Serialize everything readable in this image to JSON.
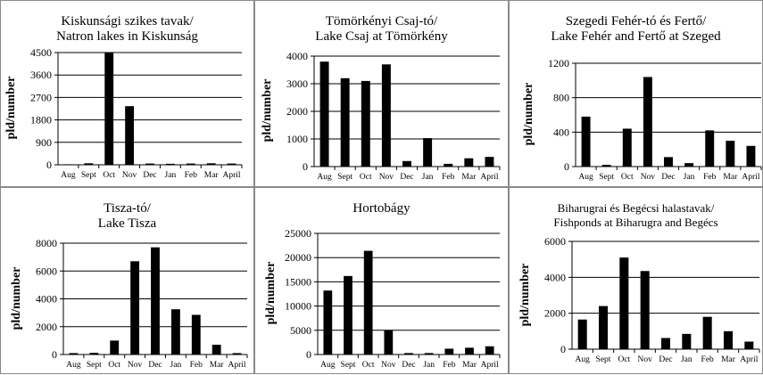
{
  "chart_data": [
    {
      "type": "bar",
      "title_line1": "Kiskunsági szikes tavak/",
      "title_line2": "Natron lakes in Kiskunság",
      "xlabel": "",
      "ylabel": "pld/number",
      "categories": [
        "Aug",
        "Sept",
        "Oct",
        "Nov",
        "Dec",
        "Jan",
        "Feb",
        "Mar",
        "April"
      ],
      "values": [
        20,
        60,
        4500,
        2350,
        50,
        40,
        50,
        60,
        50
      ],
      "yticks": [
        0,
        900,
        1800,
        2700,
        3600,
        4500
      ],
      "ylim": [
        0,
        4500
      ],
      "grid": true
    },
    {
      "type": "bar",
      "title_line1": "Tömörkényi Csaj-tó/",
      "title_line2": "Lake Csaj at Tömörkény",
      "xlabel": "",
      "ylabel": "pld/number",
      "categories": [
        "Aug",
        "Sept",
        "Oct",
        "Nov",
        "Dec",
        "Jan",
        "Feb",
        "Mar",
        "April"
      ],
      "values": [
        3800,
        3200,
        3100,
        3700,
        200,
        1030,
        100,
        300,
        350
      ],
      "yticks": [
        0,
        1000,
        2000,
        3000,
        4000
      ],
      "ylim": [
        0,
        4000
      ],
      "grid": true
    },
    {
      "type": "bar",
      "title_line1": "Szegedi Fehér-tó és Fertő/",
      "title_line2": "Lake Fehér and Fertő at Szeged",
      "xlabel": "",
      "ylabel": "pld/number",
      "categories": [
        "Aug",
        "Sept",
        "Oct",
        "Nov",
        "Dec",
        "Jan",
        "Feb",
        "Mar",
        "April"
      ],
      "values": [
        580,
        20,
        440,
        1040,
        110,
        40,
        420,
        300,
        240
      ],
      "yticks": [
        0,
        400,
        800,
        1200
      ],
      "ylim": [
        0,
        1200
      ],
      "grid": true
    },
    {
      "type": "bar",
      "title_line1": "Tisza-tó/",
      "title_line2": "Lake Tisza",
      "xlabel": "",
      "ylabel": "pld/number",
      "categories": [
        "Aug",
        "Sept",
        "Oct",
        "Nov",
        "Dec",
        "Jan",
        "Feb",
        "Mar",
        "April"
      ],
      "values": [
        100,
        120,
        1000,
        6700,
        7700,
        3250,
        2850,
        700,
        100
      ],
      "yticks": [
        0,
        2000,
        4000,
        6000,
        8000
      ],
      "ylim": [
        0,
        8000
      ],
      "grid": true
    },
    {
      "type": "bar",
      "title_line1": "Hortobágy",
      "title_line2": "",
      "xlabel": "",
      "ylabel": "pld/number",
      "categories": [
        "Aug",
        "Sept",
        "Oct",
        "Nov",
        "Dec",
        "Jan",
        "Feb",
        "Mar",
        "April"
      ],
      "values": [
        13200,
        16200,
        21400,
        5000,
        300,
        300,
        1200,
        1400,
        1700
      ],
      "yticks": [
        0,
        5000,
        10000,
        15000,
        20000,
        25000
      ],
      "ylim": [
        0,
        25000
      ],
      "grid": true
    },
    {
      "type": "bar",
      "title_line1": "Biharugrai és Begécsi halastavak/",
      "title_line2": "Fishponds at Biharugra and Begécs",
      "xlabel": "",
      "ylabel": "pld/number",
      "categories": [
        "Aug",
        "Sept",
        "Oct",
        "Nov",
        "Dec",
        "Jan",
        "Feb",
        "Mar",
        "April"
      ],
      "values": [
        1650,
        2400,
        5100,
        4350,
        620,
        850,
        1800,
        1000,
        420
      ],
      "yticks": [
        0,
        2000,
        4000,
        6000
      ],
      "ylim": [
        0,
        6000
      ],
      "grid": true
    }
  ]
}
